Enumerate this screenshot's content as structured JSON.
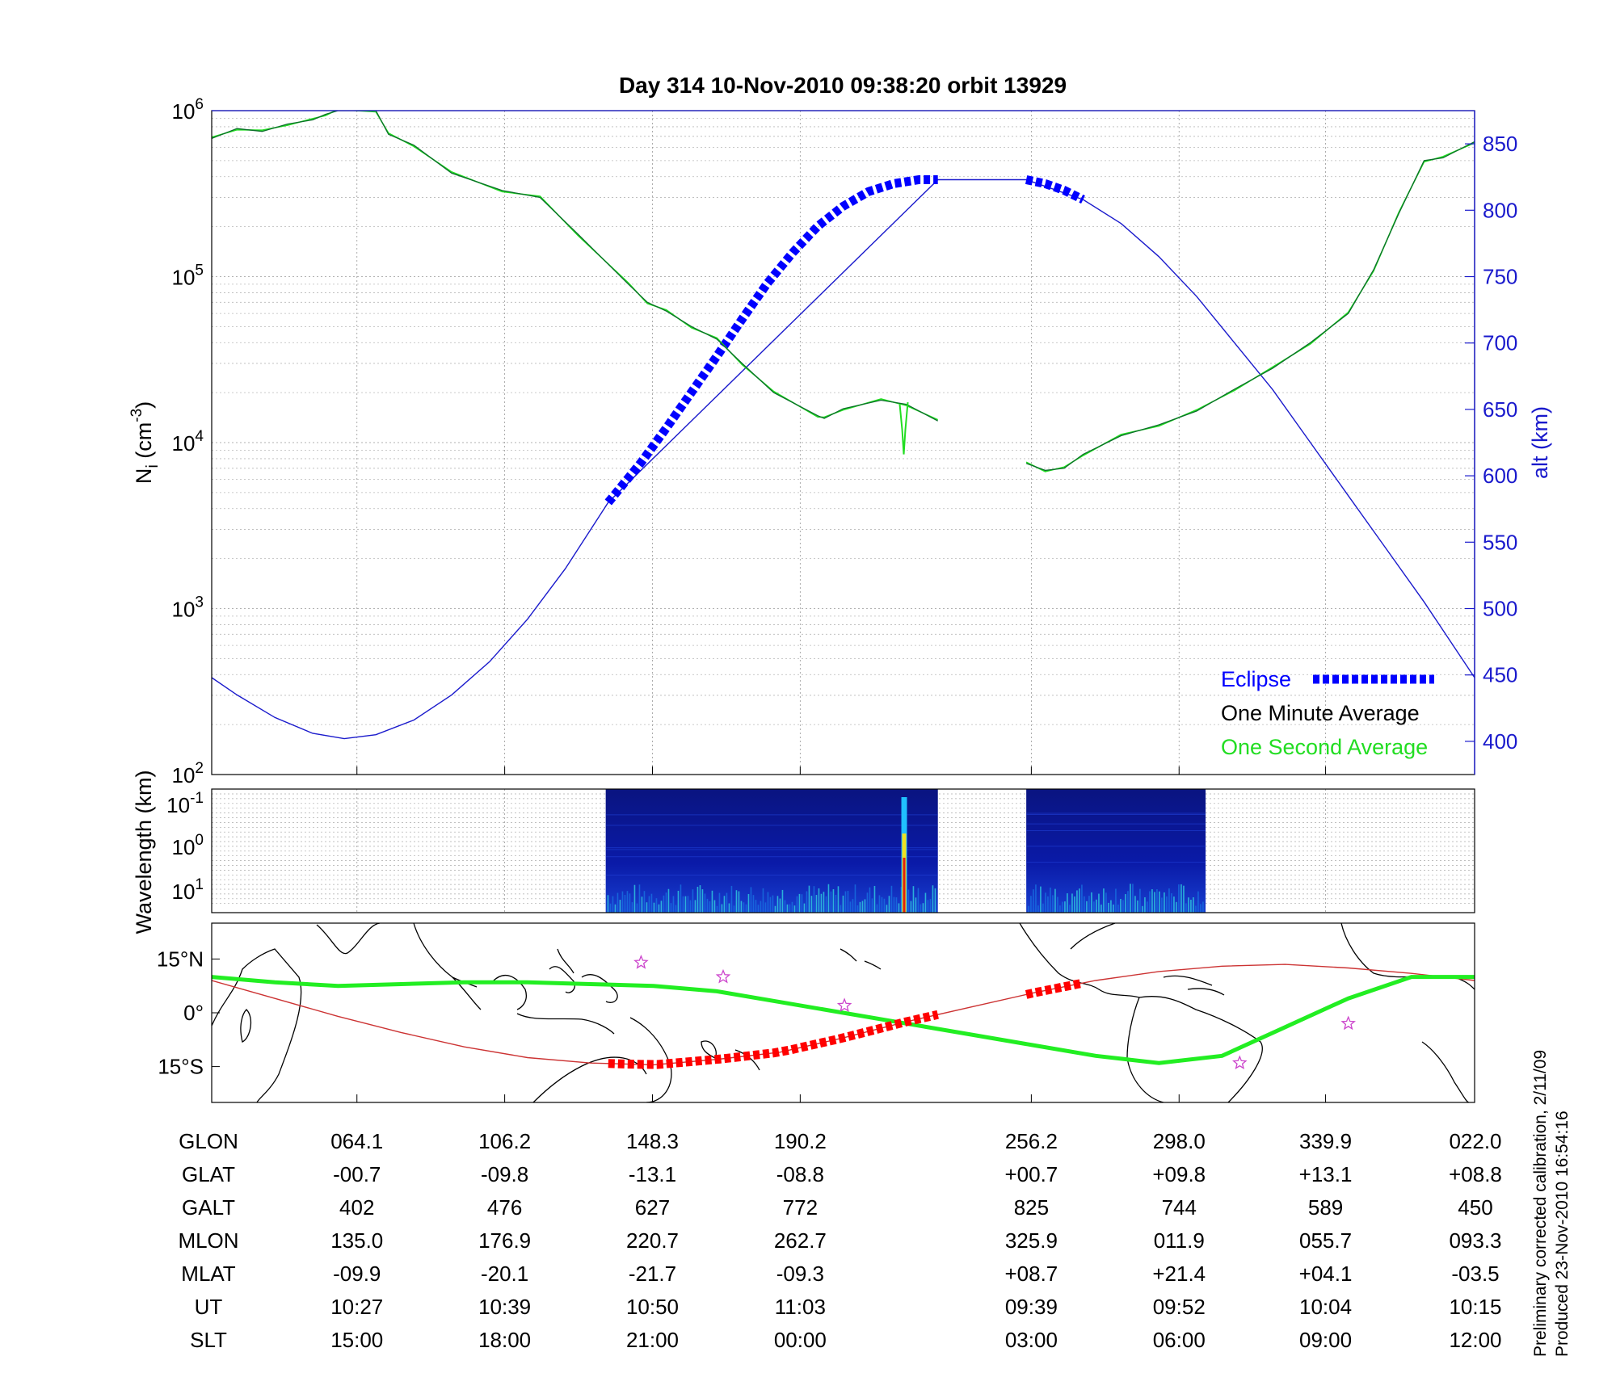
{
  "title": "Day 314  10-Nov-2010 09:38:20   orbit 13929",
  "colors": {
    "eclipse": "#0000ff",
    "alt_line": "#1a1acc",
    "one_minute": "#000000",
    "one_second": "#22dd22",
    "ni_trace": "#0b6e2a",
    "ground_track": "#22ee22",
    "mag_track": "#cc3333",
    "mag_eclipse": "#ff0000",
    "spec_bg": "#0a1aa8",
    "star": "#cc44cc"
  },
  "chart_data": [
    {
      "type": "line",
      "panel": "density-altitude",
      "ylabel_left": "N",
      "ylabel_left_sub": "i",
      "ylabel_left_unit_base": "(cm",
      "ylabel_left_unit_exp": "-3",
      "ylabel_left_unit_end": ")",
      "yscale_left": "log",
      "ylim_left": [
        100,
        1000000
      ],
      "yticks_left": [
        {
          "base": "10",
          "exp": "2"
        },
        {
          "base": "10",
          "exp": "3"
        },
        {
          "base": "10",
          "exp": "4"
        },
        {
          "base": "10",
          "exp": "5"
        },
        {
          "base": "10",
          "exp": "6"
        }
      ],
      "ylabel_right": "alt (km)",
      "ylim_right": [
        375,
        875
      ],
      "yticks_right": [
        "400",
        "450",
        "500",
        "550",
        "600",
        "650",
        "700",
        "750",
        "800",
        "850"
      ],
      "grid": true,
      "legend_position": "bottom-right",
      "legend": [
        {
          "label": "Eclipse"
        },
        {
          "label": "One Minute Average"
        },
        {
          "label": "One Second Average"
        }
      ],
      "series": [
        {
          "name": "Eclipse",
          "x_frac": [
            0.314,
            0.34,
            0.36,
            0.38,
            0.4,
            0.42,
            0.44,
            0.46,
            0.48,
            0.5,
            0.52,
            0.54,
            0.56,
            0.575
          ],
          "alt_km": [
            580,
            610,
            636,
            663,
            690,
            718,
            745,
            768,
            788,
            803,
            814,
            820,
            823,
            823
          ]
        },
        {
          "name": "Eclipse",
          "x_frac": [
            0.645,
            0.66,
            0.675,
            0.69
          ],
          "alt_km": [
            823,
            820,
            815,
            808
          ]
        },
        {
          "name": "altitude",
          "x_frac": [
            0.0,
            0.02,
            0.05,
            0.08,
            0.105,
            0.13,
            0.16,
            0.19,
            0.22,
            0.25,
            0.28,
            0.314,
            0.575,
            0.645,
            0.69,
            0.72,
            0.75,
            0.78,
            0.81,
            0.84,
            0.87,
            0.9,
            0.93,
            0.96,
            1.0
          ],
          "alt_km": [
            448,
            435,
            418,
            406,
            402,
            405,
            416,
            435,
            460,
            492,
            530,
            580,
            823,
            823,
            808,
            790,
            765,
            735,
            700,
            665,
            625,
            585,
            545,
            505,
            448
          ]
        },
        {
          "name": "One Minute Average",
          "x_frac": [
            0.0,
            0.02,
            0.04,
            0.06,
            0.08,
            0.09,
            0.1,
            0.13,
            0.14,
            0.16,
            0.19,
            0.23,
            0.26,
            0.29,
            0.33,
            0.345,
            0.36,
            0.38,
            0.4,
            0.42,
            0.445,
            0.48,
            0.485,
            0.5,
            0.53,
            0.55,
            0.575
          ],
          "ni": [
            680000,
            780000,
            750000,
            830000,
            880000,
            950000,
            1000000,
            1000000,
            720000,
            620000,
            420000,
            330000,
            300000,
            180000,
            90000,
            70000,
            62000,
            50000,
            42000,
            30000,
            20000,
            14500,
            14000,
            16000,
            18000,
            17000,
            13500
          ]
        },
        {
          "name": "One Minute Average",
          "x_frac": [
            0.645,
            0.66,
            0.675,
            0.69,
            0.72,
            0.75,
            0.78,
            0.81,
            0.84,
            0.87,
            0.9,
            0.92,
            0.94,
            0.96,
            0.975,
            1.0
          ],
          "ni": [
            7500,
            6800,
            7000,
            8500,
            11000,
            12800,
            15500,
            21000,
            28000,
            40000,
            60000,
            110000,
            240000,
            500000,
            520000,
            650000
          ]
        }
      ]
    },
    {
      "type": "heatmap",
      "panel": "spectrogram",
      "ylabel": "Wavelength (km)",
      "yticks": [
        {
          "base": "10",
          "exp": "-1"
        },
        {
          "base": "10",
          "exp": "0"
        },
        {
          "base": "10",
          "exp": "1"
        }
      ],
      "segments_x_frac": [
        [
          0.312,
          0.575
        ],
        [
          0.645,
          0.787
        ]
      ]
    },
    {
      "type": "line",
      "panel": "ground-track-map",
      "yticks": [
        "15°N",
        "0°",
        "15°S"
      ],
      "ylim_deg": [
        -25,
        25
      ],
      "series": [
        {
          "name": "ground track",
          "x_frac": [
            0.0,
            0.05,
            0.1,
            0.15,
            0.2,
            0.25,
            0.3,
            0.35,
            0.4,
            0.45,
            0.5,
            0.55,
            0.6,
            0.65,
            0.7,
            0.75,
            0.8,
            0.85,
            0.9,
            0.95,
            1.0
          ],
          "lat_deg": [
            10,
            8.5,
            7.5,
            8,
            8.5,
            8.5,
            8,
            7.5,
            6,
            3,
            0,
            -3,
            -6,
            -9,
            -12,
            -14,
            -12,
            -4,
            4,
            10,
            10
          ]
        },
        {
          "name": "magnetic equator",
          "x_frac": [
            0.0,
            0.05,
            0.1,
            0.15,
            0.2,
            0.25,
            0.3,
            0.35,
            0.4,
            0.45,
            0.5,
            0.55,
            0.6,
            0.65,
            0.7,
            0.75,
            0.8,
            0.85,
            0.9,
            0.95,
            1.0
          ],
          "lat_deg": [
            9,
            4,
            -1,
            -5.5,
            -9.5,
            -12.5,
            -14,
            -14.5,
            -13,
            -11,
            -7,
            -2.5,
            1.5,
            5.5,
            9,
            11.5,
            13,
            13.5,
            12.5,
            11,
            9
          ]
        }
      ],
      "eclipse_segments_x_frac": [
        [
          0.314,
          0.575
        ],
        [
          0.645,
          0.69
        ]
      ],
      "stars": [
        {
          "x_frac": 0.34,
          "lat_deg": 14
        },
        {
          "x_frac": 0.405,
          "lat_deg": 10
        },
        {
          "x_frac": 0.501,
          "lat_deg": 2
        },
        {
          "x_frac": 0.814,
          "lat_deg": -14
        },
        {
          "x_frac": 0.9,
          "lat_deg": -3
        }
      ]
    }
  ],
  "table": {
    "row_labels": [
      "GLON",
      "GLAT",
      "GALT",
      "MLON",
      "MLAT",
      "UT",
      "SLT"
    ],
    "columns": [
      [
        "064.1",
        "-00.7",
        "402",
        "135.0",
        "-09.9",
        "10:27",
        "15:00"
      ],
      [
        "106.2",
        "-09.8",
        "476",
        "176.9",
        "-20.1",
        "10:39",
        "18:00"
      ],
      [
        "148.3",
        "-13.1",
        "627",
        "220.7",
        "-21.7",
        "10:50",
        "21:00"
      ],
      [
        "190.2",
        "-08.8",
        "772",
        "262.7",
        "-09.3",
        "11:03",
        "00:00"
      ],
      [
        "256.2",
        "+00.7",
        "825",
        "325.9",
        "+08.7",
        "09:39",
        "03:00"
      ],
      [
        "298.0",
        "+09.8",
        "744",
        "011.9",
        "+21.4",
        "09:52",
        "06:00"
      ],
      [
        "339.9",
        "+13.1",
        "589",
        "055.7",
        "+04.1",
        "10:04",
        "09:00"
      ],
      [
        "022.0",
        "+08.8",
        "450",
        "093.3",
        "-03.5",
        "10:15",
        "12:00"
      ]
    ]
  },
  "notes": [
    "Preliminary corrected calibration, 2/11/09",
    "Produced 23-Nov-2010 16:54:16"
  ]
}
